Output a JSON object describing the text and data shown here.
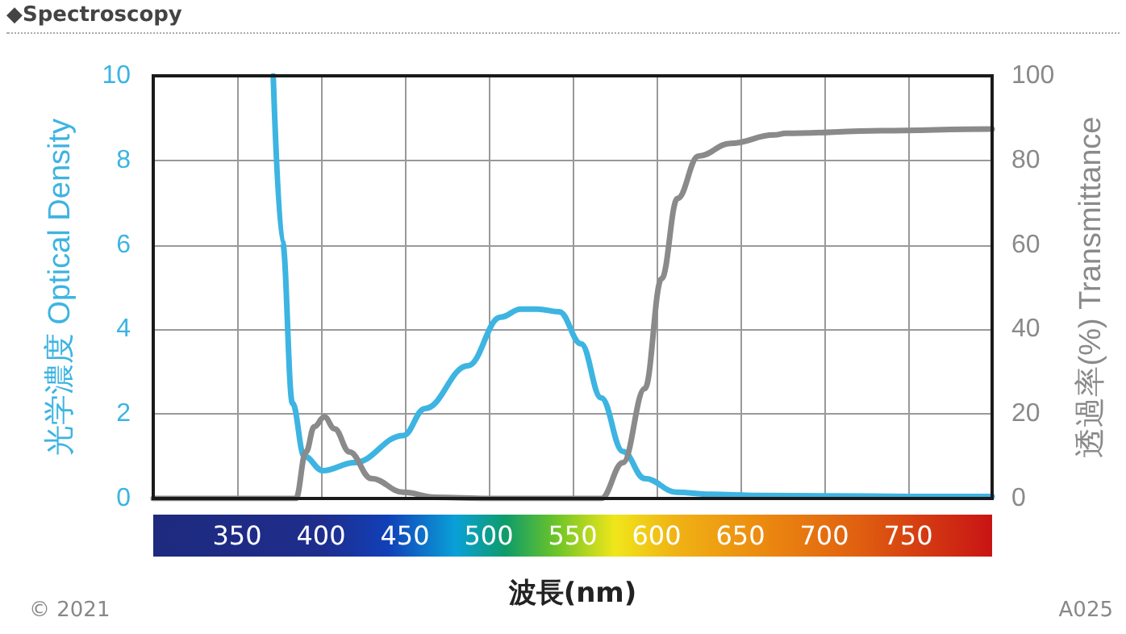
{
  "chart_data": {
    "type": "line",
    "title": "◆Spectroscopy",
    "xlabel": "波長(nm)",
    "ylabel": "光学濃度 Optical Density",
    "y2label": "透過率(%) Transmittance",
    "annotations": [
      "© 2021",
      "A025"
    ],
    "xlim": [
      300,
      800
    ],
    "xticks": [
      350,
      400,
      450,
      500,
      550,
      600,
      650,
      700,
      750
    ],
    "ylim": [
      0,
      10
    ],
    "yticks": [
      0,
      2,
      4,
      6,
      8,
      10
    ],
    "y2lim": [
      0,
      100
    ],
    "y2ticks": [
      0,
      20,
      40,
      60,
      80,
      100
    ],
    "grid": true,
    "marker": "none",
    "series": [
      {
        "color": "#3db4e2",
        "x": [
          371.5,
          377,
          383,
          390,
          401,
          420,
          449,
          462,
          487.5,
          507,
          519,
          529,
          542,
          555,
          567,
          580,
          593,
          612,
          632,
          660,
          700,
          750,
          800
        ],
        "values": [
          10,
          6.07,
          2.25,
          1.0,
          0.66,
          0.85,
          1.49,
          2.13,
          3.14,
          4.29,
          4.48,
          4.48,
          4.42,
          3.66,
          2.38,
          1.11,
          0.47,
          0.15,
          0.1,
          0.07,
          0.06,
          0.05,
          0.05
        ]
      },
      {
        "color": "#8a8a8a",
        "axis": "y2",
        "x": [
          300,
          385,
          391,
          396,
          402,
          408,
          417,
          430,
          449,
          468,
          500,
          567,
          580,
          593,
          603,
          612.5,
          625,
          644,
          670,
          677,
          734,
          798,
          800
        ],
        "values": [
          0,
          0,
          11,
          17,
          19.3,
          16.5,
          11,
          4.7,
          1.5,
          0.3,
          0,
          0,
          8.5,
          26,
          52,
          71,
          81,
          84,
          86,
          86.4,
          87,
          87.4,
          87.4
        ]
      }
    ]
  }
}
